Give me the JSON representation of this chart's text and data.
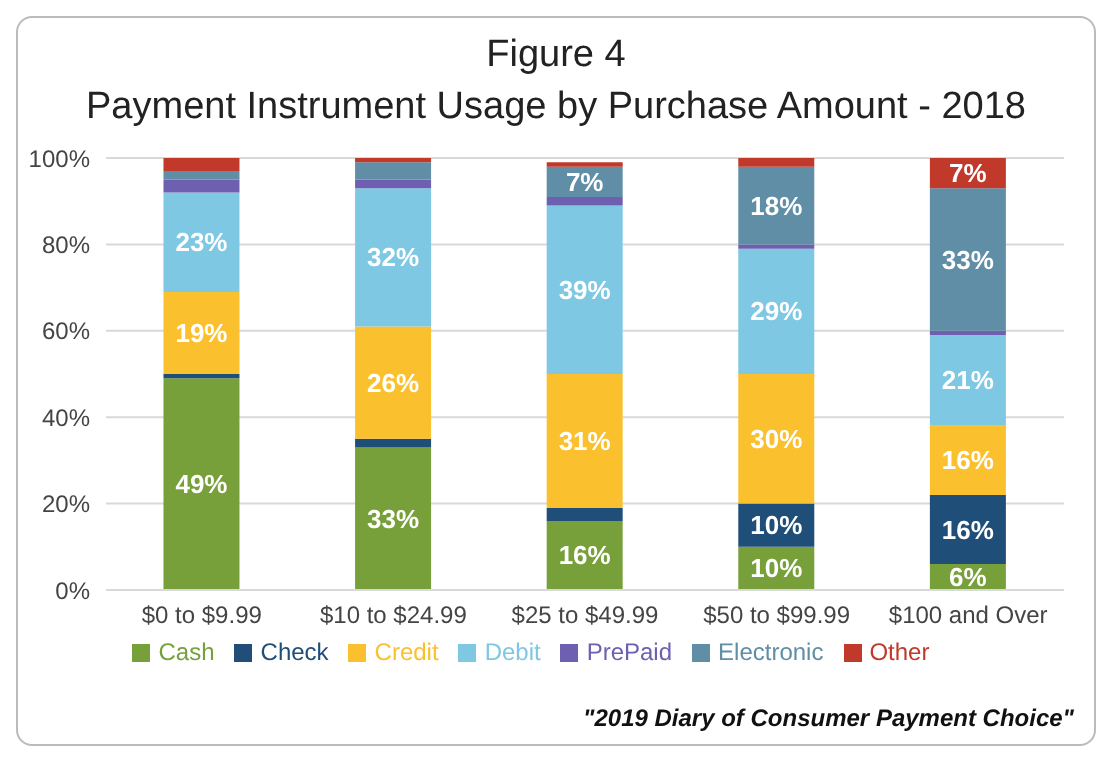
{
  "chart_data": {
    "type": "bar",
    "title": "Figure 4",
    "subtitle": "Payment Instrument Usage by Purchase Amount - 2018",
    "categories": [
      "$0 to $9.99",
      "$10 to $24.99",
      "$25 to $49.99",
      "$50 to $99.99",
      "$100 and Over"
    ],
    "stacked": true,
    "series": [
      {
        "name": "Cash",
        "color": "#77a03a",
        "values": [
          49,
          33,
          16,
          10,
          6
        ],
        "value_labels": [
          "49%",
          "33%",
          "16%",
          "10%",
          "6%"
        ]
      },
      {
        "name": "Check",
        "color": "#1f4e79",
        "values": [
          1,
          2,
          3,
          10,
          16
        ],
        "value_labels": [
          null,
          null,
          null,
          "10%",
          "16%"
        ]
      },
      {
        "name": "Credit",
        "color": "#fbc02d",
        "values": [
          19,
          26,
          31,
          30,
          16
        ],
        "value_labels": [
          "19%",
          "26%",
          "31%",
          "30%",
          "16%"
        ]
      },
      {
        "name": "Debit",
        "color": "#7ec8e3",
        "values": [
          23,
          32,
          39,
          29,
          21
        ],
        "value_labels": [
          "23%",
          "32%",
          "39%",
          "29%",
          "21%"
        ]
      },
      {
        "name": "PrePaid",
        "color": "#6f5fb0",
        "values": [
          3,
          2,
          2,
          1,
          1
        ],
        "value_labels": [
          null,
          null,
          null,
          null,
          null
        ]
      },
      {
        "name": "Electronic",
        "color": "#5f8ea6",
        "values": [
          2,
          4,
          7,
          18,
          33
        ],
        "value_labels": [
          null,
          null,
          "7%",
          "18%",
          "33%"
        ]
      },
      {
        "name": "Other",
        "color": "#c0392b",
        "values": [
          3,
          1,
          1,
          2,
          7
        ],
        "value_labels": [
          null,
          null,
          null,
          null,
          "7%"
        ]
      }
    ],
    "ylim": [
      0,
      100
    ],
    "yticks": [
      {
        "value": 0,
        "label": "0%"
      },
      {
        "value": 20,
        "label": "20%"
      },
      {
        "value": 40,
        "label": "40%"
      },
      {
        "value": 60,
        "label": "60%"
      },
      {
        "value": 80,
        "label": "80%"
      },
      {
        "value": 100,
        "label": "100%"
      }
    ],
    "grid": "y",
    "legend": "bottom",
    "annotations": [
      "\"2019 Diary of Consumer Payment Choice\""
    ]
  }
}
